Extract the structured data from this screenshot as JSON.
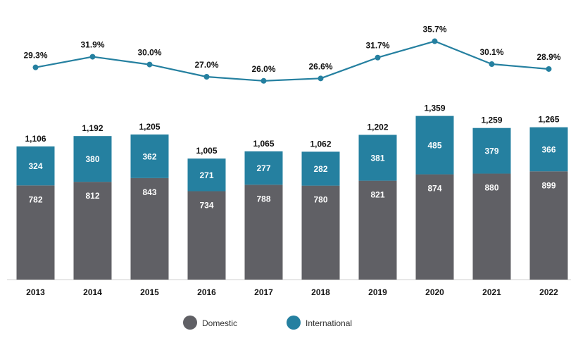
{
  "chart_data": {
    "type": "bar",
    "stacked": true,
    "categories": [
      "2013",
      "2014",
      "2015",
      "2016",
      "2017",
      "2018",
      "2019",
      "2020",
      "2021",
      "2022"
    ],
    "series": [
      {
        "name": "Domestic",
        "values": [
          782,
          812,
          843,
          734,
          788,
          780,
          821,
          874,
          880,
          899
        ],
        "value_labels": [
          "782",
          "812",
          "843",
          "734",
          "788",
          "780",
          "821",
          "874",
          "880",
          "899"
        ],
        "color": "#606065"
      },
      {
        "name": "International",
        "values": [
          324,
          380,
          362,
          271,
          277,
          282,
          381,
          485,
          379,
          366
        ],
        "value_labels": [
          "324",
          "380",
          "362",
          "271",
          "277",
          "282",
          "381",
          "485",
          "379",
          "366"
        ],
        "color": "#2580a0"
      }
    ],
    "totals": [
      1106,
      1192,
      1205,
      1005,
      1065,
      1062,
      1202,
      1359,
      1259,
      1265
    ],
    "total_labels": [
      "1,106",
      "1,192",
      "1,205",
      "1,005",
      "1,065",
      "1,062",
      "1,202",
      "1,359",
      "1,259",
      "1,265"
    ],
    "line": {
      "values": [
        29.3,
        31.9,
        30.0,
        27.0,
        26.0,
        26.6,
        31.7,
        35.7,
        30.1,
        28.9
      ],
      "labels": [
        "29.3%",
        "31.9%",
        "30.0%",
        "27.0%",
        "26.0%",
        "26.6%",
        "31.7%",
        "35.7%",
        "30.1%",
        "28.9%"
      ],
      "color": "#2580a0"
    },
    "title": "",
    "xlabel": "",
    "ylabel": "",
    "grid": false,
    "legend_position": "bottom-center"
  }
}
